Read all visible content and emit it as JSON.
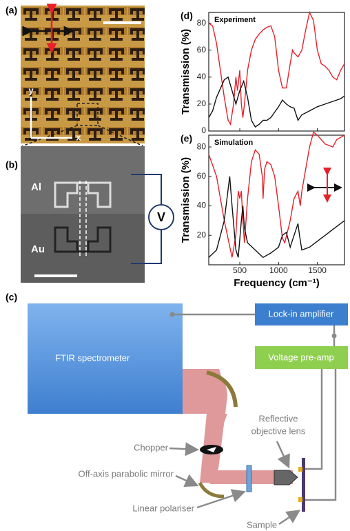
{
  "panels": {
    "a": {
      "label": "(a)",
      "y_axis": "y",
      "x_axis": "x"
    },
    "b": {
      "label": "(b)",
      "top": "Al",
      "bottom": "Au",
      "meter": "V"
    }
  },
  "chart_data": [
    {
      "type": "line",
      "label": "(d)",
      "annotation": "Experiment",
      "ylabel": "Transmission (%)",
      "xlim": [
        100,
        1850
      ],
      "ylim": [
        0,
        88
      ],
      "yticks": [
        0,
        20,
        40,
        60,
        80
      ],
      "series": [
        {
          "color": "#e8202a",
          "x": [
            100,
            150,
            200,
            250,
            300,
            350,
            380,
            420,
            450,
            470,
            500,
            520,
            540,
            560,
            600,
            650,
            700,
            750,
            800,
            850,
            900,
            950,
            1000,
            1050,
            1100,
            1150,
            1180,
            1200,
            1250,
            1300,
            1350,
            1400,
            1450,
            1500,
            1550,
            1600,
            1650,
            1700,
            1750,
            1800,
            1850
          ],
          "values": [
            80,
            78,
            65,
            45,
            25,
            8,
            5,
            20,
            40,
            30,
            45,
            20,
            10,
            20,
            45,
            60,
            68,
            72,
            75,
            77,
            78,
            70,
            45,
            32,
            32,
            50,
            60,
            58,
            55,
            60,
            75,
            88,
            82,
            60,
            50,
            48,
            45,
            40,
            38,
            45,
            50
          ]
        },
        {
          "color": "#111111",
          "x": [
            100,
            150,
            200,
            300,
            350,
            400,
            450,
            500,
            550,
            600,
            650,
            700,
            750,
            800,
            850,
            900,
            1000,
            1050,
            1100,
            1150,
            1200,
            1250,
            1300,
            1400,
            1500,
            1600,
            1700,
            1800,
            1850
          ],
          "values": [
            10,
            15,
            25,
            38,
            40,
            30,
            20,
            30,
            37,
            25,
            8,
            3,
            5,
            8,
            8,
            10,
            18,
            23,
            20,
            18,
            17,
            8,
            12,
            15,
            18,
            20,
            22,
            24,
            26
          ]
        }
      ]
    },
    {
      "type": "line",
      "label": "(e)",
      "annotation": "Simulation",
      "ylabel": "Transmission (%)",
      "xlabel": "Frequency (cm⁻¹)",
      "xlim": [
        100,
        1850
      ],
      "xticks": [
        500,
        1000,
        1500
      ],
      "ylim": [
        0,
        88
      ],
      "yticks": [
        20,
        40,
        60,
        80
      ],
      "series": [
        {
          "color": "#e8202a",
          "x": [
            100,
            200,
            300,
            400,
            450,
            480,
            500,
            520,
            540,
            560,
            600,
            650,
            700,
            750,
            790,
            800,
            820,
            850,
            900,
            950,
            1000,
            1050,
            1080,
            1150,
            1200,
            1250,
            1280,
            1300,
            1400,
            1450,
            1500,
            1600,
            1700,
            1750,
            1850
          ],
          "values": [
            75,
            60,
            30,
            5,
            20,
            50,
            45,
            50,
            30,
            15,
            45,
            70,
            78,
            75,
            60,
            45,
            65,
            70,
            68,
            60,
            40,
            18,
            15,
            30,
            45,
            50,
            40,
            50,
            80,
            90,
            88,
            82,
            80,
            85,
            88
          ]
        },
        {
          "color": "#111111",
          "x": [
            100,
            200,
            300,
            370,
            400,
            450,
            480,
            520,
            540,
            560,
            600,
            700,
            800,
            900,
            1000,
            1050,
            1100,
            1150,
            1200,
            1250,
            1270,
            1300,
            1400,
            1500,
            1600,
            1700,
            1850
          ],
          "values": [
            5,
            10,
            30,
            60,
            40,
            10,
            5,
            30,
            40,
            25,
            15,
            10,
            5,
            8,
            12,
            20,
            22,
            12,
            20,
            28,
            20,
            10,
            12,
            16,
            20,
            24,
            30
          ]
        }
      ]
    }
  ],
  "diagram": {
    "label": "(c)",
    "ftir": "FTIR spectrometer",
    "lockin": "Lock-in amplifier",
    "preamp": "Voltage pre-amp",
    "objective_line1": "Reflective",
    "objective_line2": "objective lens",
    "chopper": "Chopper",
    "mirror": "Off-axis parabolic mirror",
    "polariser": "Linear polariser",
    "sample": "Sample"
  }
}
